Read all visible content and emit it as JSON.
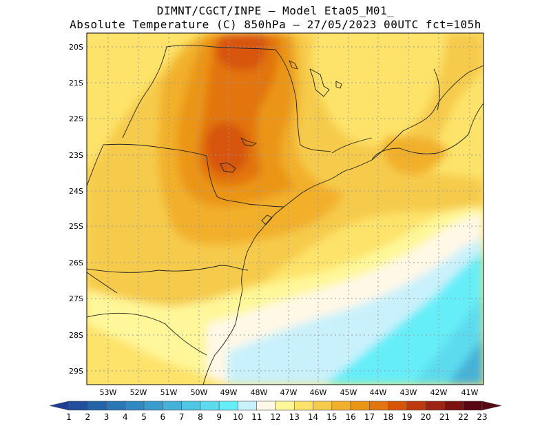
{
  "title": {
    "line1": "DIMNT/CGCT/INPE –  Model Eta05_M01_",
    "line2": "Absolute Temperature (C) 850hPa –  27/05/2023 00UTC fct=105h"
  },
  "map": {
    "lat_labels": [
      "20S",
      "21S",
      "22S",
      "23S",
      "24S",
      "25S",
      "26S",
      "27S",
      "28S",
      "29S"
    ],
    "lon_labels": [
      "53W",
      "52W",
      "51W",
      "50W",
      "49W",
      "48W",
      "47W",
      "46W",
      "45W",
      "44W",
      "43W",
      "42W",
      "41W"
    ],
    "extent": {
      "lon_min": -53.6,
      "lon_max": -40.5,
      "lat_min": -29.4,
      "lat_max": -19.7
    }
  },
  "colorbar": {
    "labels": [
      "1",
      "2",
      "3",
      "4",
      "5",
      "6",
      "7",
      "8",
      "9",
      "10",
      "11",
      "12",
      "13",
      "14",
      "15",
      "16",
      "17",
      "18",
      "19",
      "20",
      "21",
      "22",
      "23"
    ],
    "colors": [
      "#1f3f96",
      "#214f9e",
      "#2563a8",
      "#2b77b5",
      "#3089c0",
      "#3a9ccc",
      "#45b1d9",
      "#4fc6e4",
      "#5cdbee",
      "#66eef8",
      "#c9f1fb",
      "#fff8e6",
      "#fff79a",
      "#fde36a",
      "#f6cb4c",
      "#f2b02a",
      "#eb9514",
      "#e27511",
      "#d75507",
      "#bd3a10",
      "#9f2314",
      "#7d1010",
      "#590613"
    ]
  },
  "colors": {
    "coast": "#222222",
    "grid": "#9a9a9a",
    "frame": "#000000"
  }
}
